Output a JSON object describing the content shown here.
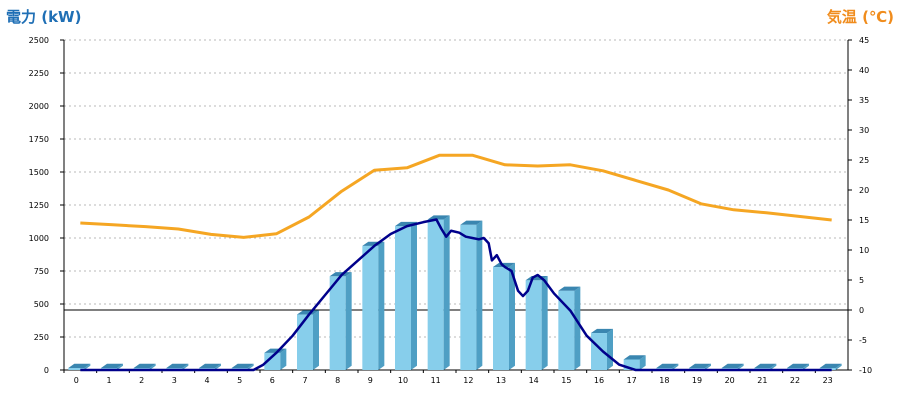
{
  "chart_data": {
    "type": "bar",
    "left_axis_title": "電力 (kW)",
    "right_axis_title": "気温 (℃)",
    "categories": [
      "0",
      "1",
      "2",
      "3",
      "4",
      "5",
      "6",
      "7",
      "8",
      "9",
      "10",
      "11",
      "12",
      "13",
      "14",
      "15",
      "16",
      "17",
      "18",
      "19",
      "20",
      "21",
      "22",
      "23"
    ],
    "y_left_ticks": [
      "0",
      "250",
      "500",
      "750",
      "1000",
      "1250",
      "1500",
      "1750",
      "2000",
      "2250",
      "2500"
    ],
    "y_right_ticks": [
      "-10",
      "-5",
      "0",
      "5",
      "10",
      "15",
      "20",
      "25",
      "30",
      "35",
      "40",
      "45"
    ],
    "ylim_left": [
      0,
      2500
    ],
    "ylim_right": [
      -10,
      45
    ],
    "grid": true,
    "colors": {
      "bar": "#87ceeb",
      "bar_side": "#4f9fc4",
      "bar_top": "#3a86b0",
      "power_line": "#00008b",
      "temp_line": "#f5a623",
      "left_title": "#1f6fb5",
      "right_title": "#f08c1c"
    },
    "series": [
      {
        "axis": "left",
        "type": "bar",
        "values": [
          0,
          0,
          0,
          0,
          0,
          0,
          130,
          420,
          710,
          940,
          1090,
          1140,
          1100,
          780,
          680,
          600,
          280,
          80,
          0,
          0,
          0,
          0,
          0,
          0
        ]
      },
      {
        "axis": "left",
        "type": "line",
        "points": [
          [
            0,
            0
          ],
          [
            1,
            0
          ],
          [
            2,
            0
          ],
          [
            3,
            0
          ],
          [
            4,
            0
          ],
          [
            5,
            0
          ],
          [
            5.3,
            0
          ],
          [
            5.6,
            40
          ],
          [
            6,
            130
          ],
          [
            6.5,
            260
          ],
          [
            7,
            420
          ],
          [
            7.5,
            570
          ],
          [
            8,
            720
          ],
          [
            8.5,
            830
          ],
          [
            9,
            940
          ],
          [
            9.5,
            1030
          ],
          [
            10,
            1090
          ],
          [
            10.5,
            1120
          ],
          [
            10.9,
            1140
          ],
          [
            11.05,
            1070
          ],
          [
            11.2,
            1010
          ],
          [
            11.35,
            1055
          ],
          [
            11.6,
            1040
          ],
          [
            11.8,
            1010
          ],
          [
            12,
            1000
          ],
          [
            12.2,
            990
          ],
          [
            12.35,
            1000
          ],
          [
            12.5,
            960
          ],
          [
            12.6,
            830
          ],
          [
            12.75,
            870
          ],
          [
            12.9,
            800
          ],
          [
            13,
            780
          ],
          [
            13.2,
            750
          ],
          [
            13.4,
            600
          ],
          [
            13.55,
            560
          ],
          [
            13.7,
            600
          ],
          [
            13.85,
            700
          ],
          [
            14,
            720
          ],
          [
            14.2,
            680
          ],
          [
            14.5,
            580
          ],
          [
            15,
            450
          ],
          [
            15.5,
            260
          ],
          [
            16,
            140
          ],
          [
            16.5,
            40
          ],
          [
            17,
            0
          ],
          [
            18,
            0
          ],
          [
            19,
            0
          ],
          [
            20,
            0
          ],
          [
            21,
            0
          ],
          [
            22,
            0
          ],
          [
            23,
            0
          ]
        ]
      },
      {
        "axis": "right",
        "type": "line",
        "points": [
          [
            0,
            14.5
          ],
          [
            1,
            14.2
          ],
          [
            2,
            13.9
          ],
          [
            3,
            13.5
          ],
          [
            4,
            12.6
          ],
          [
            5,
            12.1
          ],
          [
            6,
            12.7
          ],
          [
            7,
            15.5
          ],
          [
            8,
            19.8
          ],
          [
            9,
            23.3
          ],
          [
            10,
            23.7
          ],
          [
            11,
            25.8
          ],
          [
            12,
            25.8
          ],
          [
            13,
            24.2
          ],
          [
            14,
            24.0
          ],
          [
            15,
            24.2
          ],
          [
            16,
            23.2
          ],
          [
            17,
            21.6
          ],
          [
            18,
            20.0
          ],
          [
            19,
            17.7
          ],
          [
            20,
            16.7
          ],
          [
            21,
            16.2
          ],
          [
            22,
            15.6
          ],
          [
            23,
            15.0
          ]
        ]
      }
    ]
  }
}
